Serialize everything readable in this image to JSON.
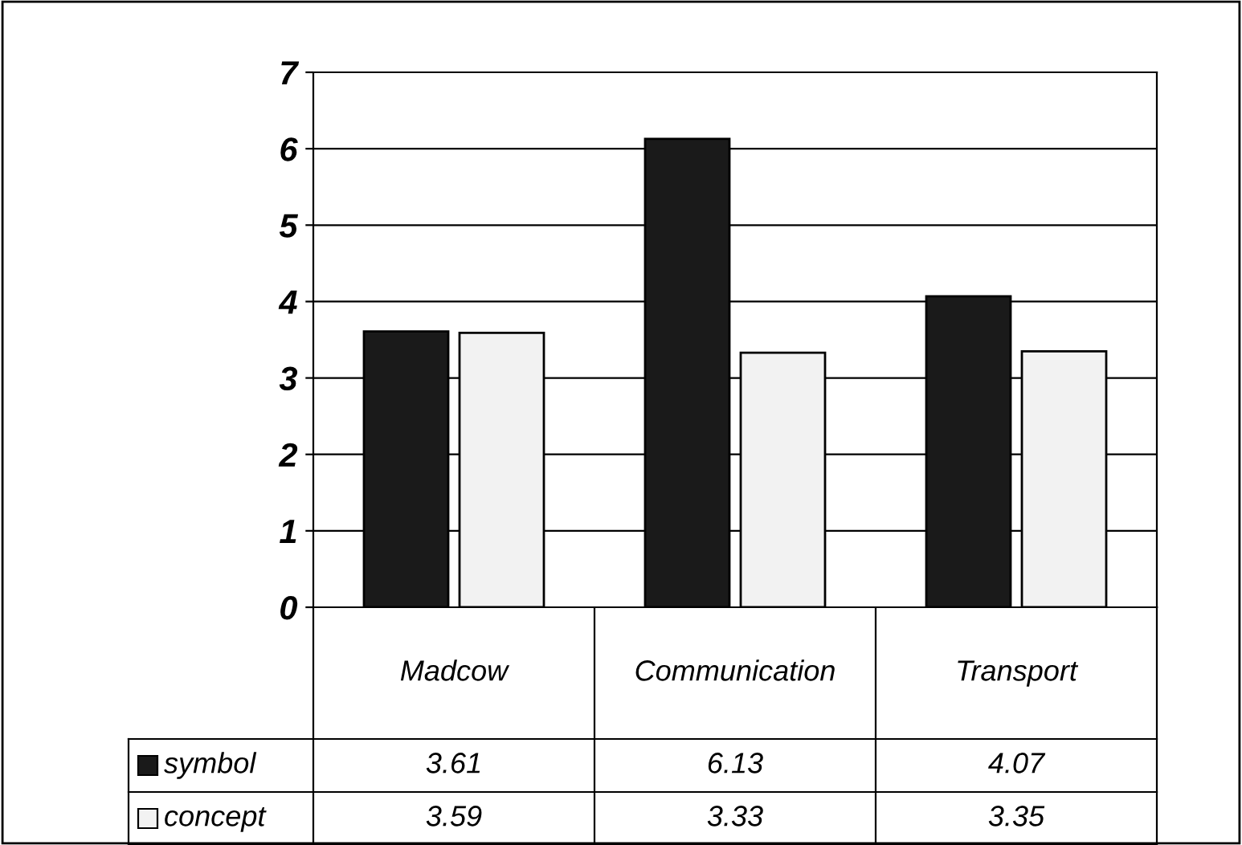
{
  "chart_data": {
    "type": "bar",
    "categories": [
      "Madcow",
      "Communication",
      "Transport"
    ],
    "series": [
      {
        "name": "symbol",
        "color": "#1a1a1a",
        "values": [
          3.61,
          6.13,
          4.07
        ]
      },
      {
        "name": "concept",
        "color": "#f2f2f2",
        "values": [
          3.59,
          3.33,
          3.35
        ]
      }
    ],
    "ylim": [
      0,
      7
    ],
    "yticks": [
      0,
      1,
      2,
      3,
      4,
      5,
      6,
      7
    ],
    "grid": "y",
    "legend": "bottom",
    "data_labels": true
  }
}
